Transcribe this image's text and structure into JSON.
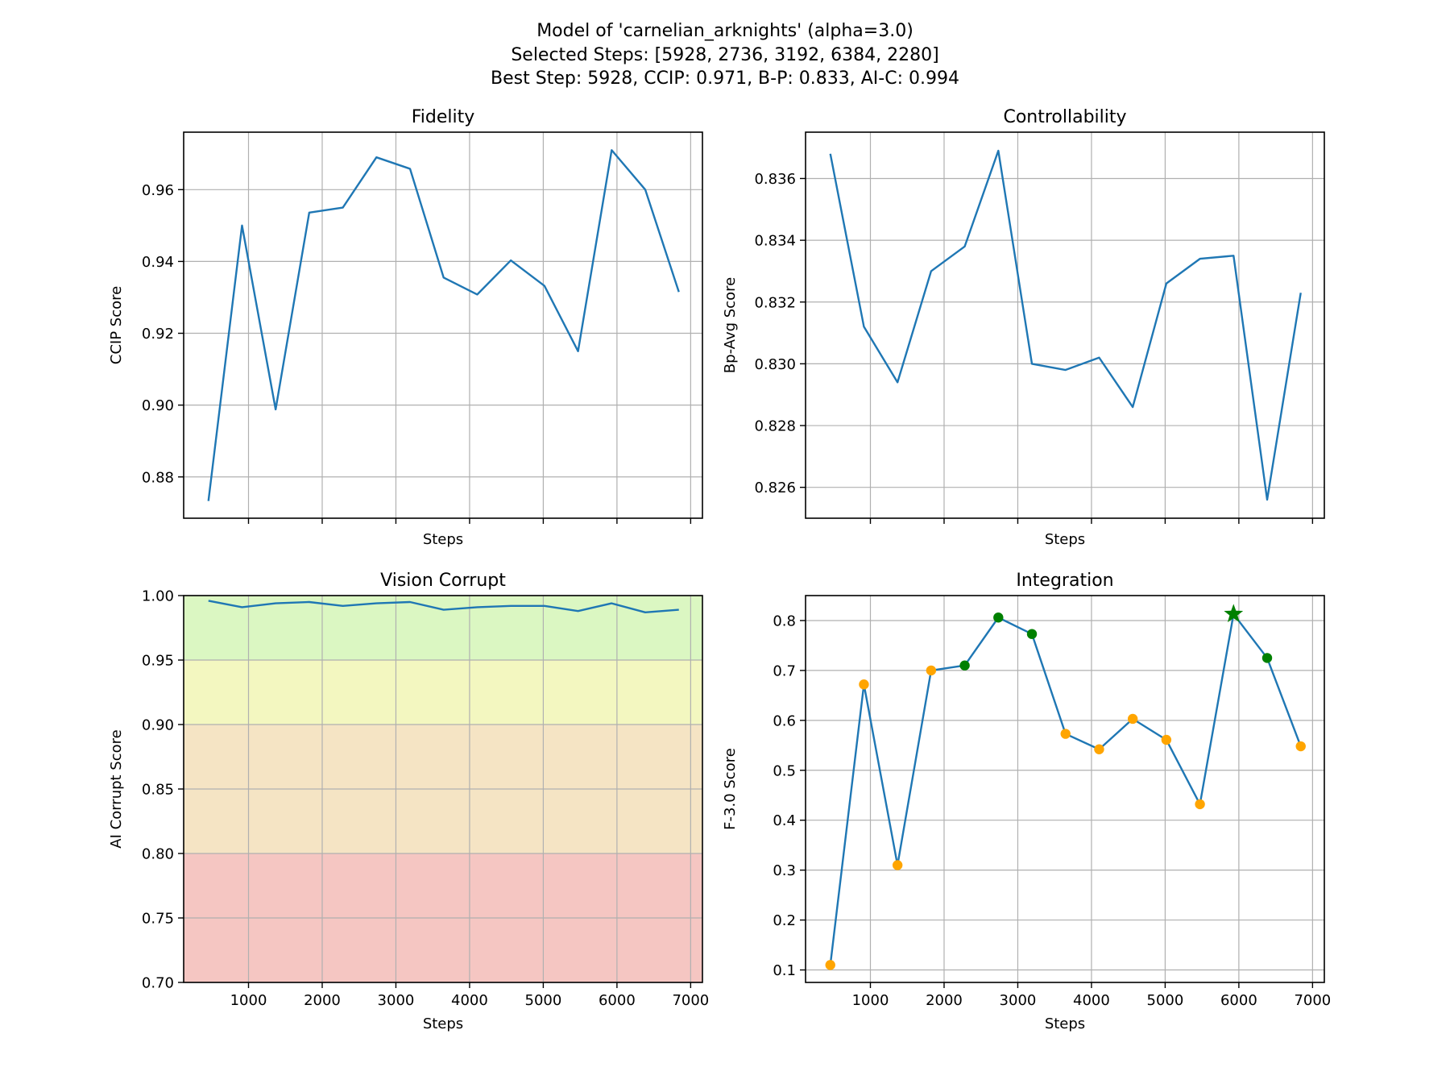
{
  "figure": {
    "title_lines": [
      "Model of 'carnelian_arknights' (alpha=3.0)",
      "Selected Steps: [5928, 2736, 3192, 6384, 2280]",
      "Best Step: 5928, CCIP: 0.971, B-P: 0.833, AI-C: 0.994"
    ]
  },
  "chart_data": [
    {
      "type": "line",
      "title": "Fidelity",
      "xlabel": "Steps",
      "ylabel": "CCIP Score",
      "xlim": [
        120,
        7160
      ],
      "ylim": [
        0.8685,
        0.976
      ],
      "x_ticks": [
        1000,
        2000,
        3000,
        4000,
        5000,
        6000,
        7000
      ],
      "x_tick_labels_visible": false,
      "y_ticks": [
        0.88,
        0.9,
        0.92,
        0.94,
        0.96
      ],
      "y_tick_labels": [
        "0.88",
        "0.90",
        "0.92",
        "0.94",
        "0.96"
      ],
      "grid": true,
      "series": [
        {
          "color": "#1f77b4",
          "x": [
            456,
            912,
            1368,
            1824,
            2280,
            2736,
            3192,
            3648,
            4104,
            4560,
            5016,
            5472,
            5928,
            6384,
            6840
          ],
          "y": [
            0.8733,
            0.95,
            0.8988,
            0.9536,
            0.955,
            0.969,
            0.9658,
            0.9355,
            0.9308,
            0.9403,
            0.9332,
            0.915,
            0.971,
            0.96,
            0.9315
          ]
        }
      ]
    },
    {
      "type": "line",
      "title": "Controllability",
      "xlabel": "Steps",
      "ylabel": "Bp-Avg Score",
      "xlim": [
        120,
        7160
      ],
      "ylim": [
        0.825,
        0.8375
      ],
      "x_ticks": [
        1000,
        2000,
        3000,
        4000,
        5000,
        6000,
        7000
      ],
      "x_tick_labels_visible": false,
      "y_ticks": [
        0.826,
        0.828,
        0.83,
        0.832,
        0.834,
        0.836
      ],
      "y_tick_labels": [
        "0.826",
        "0.828",
        "0.830",
        "0.832",
        "0.834",
        "0.836"
      ],
      "grid": true,
      "series": [
        {
          "color": "#1f77b4",
          "x": [
            456,
            912,
            1368,
            1824,
            2280,
            2736,
            3192,
            3648,
            4104,
            4560,
            5016,
            5472,
            5928,
            6384,
            6840
          ],
          "y": [
            0.8368,
            0.8312,
            0.8294,
            0.833,
            0.8338,
            0.8369,
            0.83,
            0.8298,
            0.8302,
            0.8286,
            0.8326,
            0.8334,
            0.8335,
            0.8256,
            0.8323
          ]
        }
      ]
    },
    {
      "type": "line",
      "title": "Vision Corrupt",
      "xlabel": "Steps",
      "ylabel": "AI Corrupt Score",
      "xlim": [
        120,
        7160
      ],
      "ylim": [
        0.7,
        1.0
      ],
      "x_ticks": [
        1000,
        2000,
        3000,
        4000,
        5000,
        6000,
        7000
      ],
      "x_tick_labels": [
        "1000",
        "2000",
        "3000",
        "4000",
        "5000",
        "6000",
        "7000"
      ],
      "y_ticks": [
        0.7,
        0.75,
        0.8,
        0.85,
        0.9,
        0.95,
        1.0
      ],
      "y_tick_labels": [
        "0.70",
        "0.75",
        "0.80",
        "0.85",
        "0.90",
        "0.95",
        "1.00"
      ],
      "grid": true,
      "background_bands": [
        {
          "from": 0.7,
          "to": 0.8,
          "color": "#f5c6c2"
        },
        {
          "from": 0.8,
          "to": 0.9,
          "color": "#f5e4c4"
        },
        {
          "from": 0.9,
          "to": 0.95,
          "color": "#f3f7c0"
        },
        {
          "from": 0.95,
          "to": 1.0,
          "color": "#dbf7c2"
        }
      ],
      "series": [
        {
          "color": "#1f77b4",
          "x": [
            456,
            912,
            1368,
            1824,
            2280,
            2736,
            3192,
            3648,
            4104,
            4560,
            5016,
            5472,
            5928,
            6384,
            6840
          ],
          "y": [
            0.996,
            0.991,
            0.994,
            0.995,
            0.992,
            0.994,
            0.995,
            0.989,
            0.991,
            0.992,
            0.992,
            0.988,
            0.994,
            0.987,
            0.989
          ]
        }
      ]
    },
    {
      "type": "line",
      "title": "Integration",
      "xlabel": "Steps",
      "ylabel": "F-3.0 Score",
      "xlim": [
        120,
        7160
      ],
      "ylim": [
        0.075,
        0.85
      ],
      "x_ticks": [
        1000,
        2000,
        3000,
        4000,
        5000,
        6000,
        7000
      ],
      "x_tick_labels": [
        "1000",
        "2000",
        "3000",
        "4000",
        "5000",
        "6000",
        "7000"
      ],
      "y_ticks": [
        0.1,
        0.2,
        0.3,
        0.4,
        0.5,
        0.6,
        0.7,
        0.8
      ],
      "y_tick_labels": [
        "0.1",
        "0.2",
        "0.3",
        "0.4",
        "0.5",
        "0.6",
        "0.7",
        "0.8"
      ],
      "grid": true,
      "series": [
        {
          "color": "#1f77b4",
          "x": [
            456,
            912,
            1368,
            1824,
            2280,
            2736,
            3192,
            3648,
            4104,
            4560,
            5016,
            5472,
            5928,
            6384,
            6840
          ],
          "y": [
            0.11,
            0.672,
            0.31,
            0.7,
            0.71,
            0.806,
            0.773,
            0.573,
            0.542,
            0.603,
            0.561,
            0.432,
            0.813,
            0.725,
            0.548
          ]
        }
      ],
      "markers": {
        "default_color": "#ffa500",
        "selected_color": "#008000",
        "best_color": "#008000",
        "selected_steps": [
          2280,
          2736,
          3192,
          6384
        ],
        "best_step": 5928,
        "best_marker": "star"
      }
    }
  ]
}
